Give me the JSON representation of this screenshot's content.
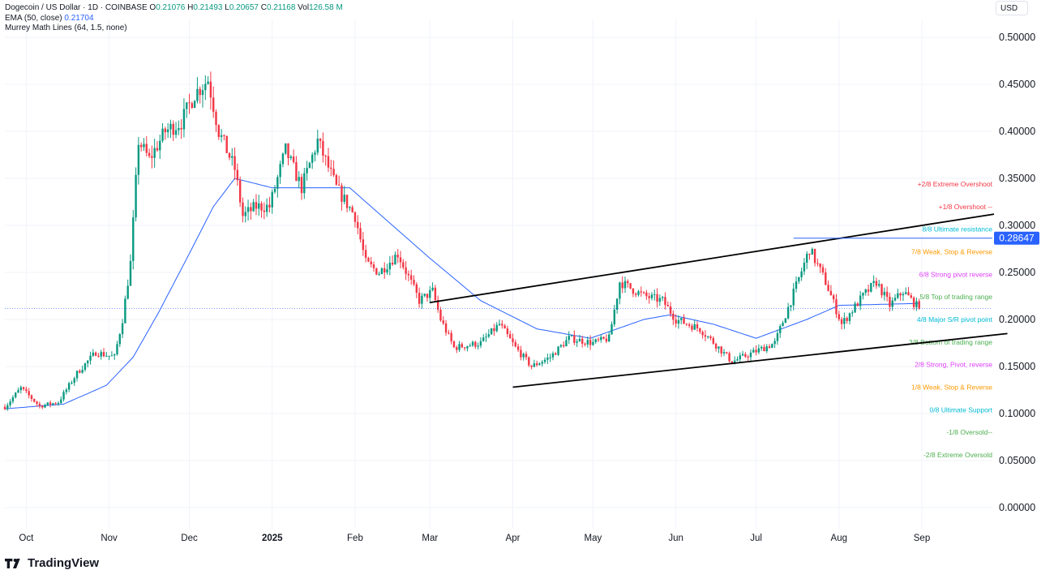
{
  "header": {
    "symbol": "Dogecoin / US Dollar · 1D · COINBASE",
    "ohlc": [
      {
        "k": "O",
        "v": "0.21076"
      },
      {
        "k": "H",
        "v": "0.21493"
      },
      {
        "k": "L",
        "v": "0.20657"
      },
      {
        "k": "C",
        "v": "0.21168"
      },
      {
        "k": "Vol",
        "v": "126.58 M"
      }
    ],
    "ema_label": "EMA (50, close)",
    "ema_value": "0.21704",
    "murrey_label": "Murrey Math Lines (64, 1.5, none)",
    "currency": "USD"
  },
  "brand": "TradingView",
  "colors": {
    "up": "#089981",
    "down": "#f23645",
    "ema": "#2962ff",
    "price_tag": "#2962ff",
    "channel": "#000000"
  },
  "chart_data": {
    "type": "candlestick",
    "symbol": "DOGE/USD",
    "ylim": [
      0,
      0.52
    ],
    "y_ticks": [
      "0.50000",
      "0.45000",
      "0.40000",
      "0.35000",
      "0.30000",
      "0.25000",
      "0.20000",
      "0.15000",
      "0.10000",
      "0.05000",
      "0.00000"
    ],
    "x_ticks": [
      {
        "label": "Oct",
        "date": "2024-10-01",
        "bold": false
      },
      {
        "label": "Nov",
        "date": "2024-11-01",
        "bold": false
      },
      {
        "label": "Dec",
        "date": "2024-12-01",
        "bold": false
      },
      {
        "label": "2025",
        "date": "2025-01-01",
        "bold": true
      },
      {
        "label": "Feb",
        "date": "2025-02-01",
        "bold": false
      },
      {
        "label": "Mar",
        "date": "2025-03-01",
        "bold": false
      },
      {
        "label": "Apr",
        "date": "2025-04-01",
        "bold": false
      },
      {
        "label": "May",
        "date": "2025-05-01",
        "bold": false
      },
      {
        "label": "Jun",
        "date": "2025-06-01",
        "bold": false
      },
      {
        "label": "Jul",
        "date": "2025-07-01",
        "bold": false
      },
      {
        "label": "Aug",
        "date": "2025-08-01",
        "bold": false
      },
      {
        "label": "Sep",
        "date": "2025-09-01",
        "bold": false
      }
    ],
    "price_path": [
      [
        "2024-09-23",
        0.107
      ],
      [
        "2024-09-29",
        0.127
      ],
      [
        "2024-10-06",
        0.108
      ],
      [
        "2024-10-13",
        0.112
      ],
      [
        "2024-10-20",
        0.143
      ],
      [
        "2024-10-27",
        0.165
      ],
      [
        "2024-11-03",
        0.16
      ],
      [
        "2024-11-06",
        0.2
      ],
      [
        "2024-11-09",
        0.26
      ],
      [
        "2024-11-12",
        0.39
      ],
      [
        "2024-11-16",
        0.37
      ],
      [
        "2024-11-22",
        0.4
      ],
      [
        "2024-11-28",
        0.41
      ],
      [
        "2024-12-03",
        0.44
      ],
      [
        "2024-12-08",
        0.455
      ],
      [
        "2024-12-12",
        0.4
      ],
      [
        "2024-12-18",
        0.36
      ],
      [
        "2024-12-21",
        0.31
      ],
      [
        "2024-12-26",
        0.32
      ],
      [
        "2024-12-31",
        0.32
      ],
      [
        "2025-01-06",
        0.38
      ],
      [
        "2025-01-12",
        0.34
      ],
      [
        "2025-01-18",
        0.39
      ],
      [
        "2025-01-25",
        0.34
      ],
      [
        "2025-02-01",
        0.31
      ],
      [
        "2025-02-05",
        0.26
      ],
      [
        "2025-02-10",
        0.25
      ],
      [
        "2025-02-17",
        0.27
      ],
      [
        "2025-02-25",
        0.22
      ],
      [
        "2025-03-02",
        0.23
      ],
      [
        "2025-03-05",
        0.2
      ],
      [
        "2025-03-10",
        0.17
      ],
      [
        "2025-03-20",
        0.175
      ],
      [
        "2025-03-27",
        0.195
      ],
      [
        "2025-04-02",
        0.17
      ],
      [
        "2025-04-08",
        0.15
      ],
      [
        "2025-04-15",
        0.16
      ],
      [
        "2025-04-22",
        0.18
      ],
      [
        "2025-05-01",
        0.175
      ],
      [
        "2025-05-07",
        0.18
      ],
      [
        "2025-05-11",
        0.24
      ],
      [
        "2025-05-20",
        0.225
      ],
      [
        "2025-05-27",
        0.22
      ],
      [
        "2025-06-01",
        0.2
      ],
      [
        "2025-06-10",
        0.19
      ],
      [
        "2025-06-17",
        0.17
      ],
      [
        "2025-06-22",
        0.155
      ],
      [
        "2025-06-30",
        0.165
      ],
      [
        "2025-07-08",
        0.175
      ],
      [
        "2025-07-14",
        0.22
      ],
      [
        "2025-07-21",
        0.275
      ],
      [
        "2025-07-27",
        0.24
      ],
      [
        "2025-08-02",
        0.195
      ],
      [
        "2025-08-10",
        0.225
      ],
      [
        "2025-08-15",
        0.24
      ],
      [
        "2025-08-20",
        0.215
      ],
      [
        "2025-08-25",
        0.23
      ],
      [
        "2025-08-31",
        0.2117
      ]
    ],
    "ema_path": [
      [
        "2024-09-23",
        0.105
      ],
      [
        "2024-10-15",
        0.11
      ],
      [
        "2024-10-31",
        0.13
      ],
      [
        "2024-11-10",
        0.16
      ],
      [
        "2024-11-20",
        0.21
      ],
      [
        "2024-12-01",
        0.27
      ],
      [
        "2024-12-10",
        0.32
      ],
      [
        "2024-12-18",
        0.35
      ],
      [
        "2025-01-01",
        0.34
      ],
      [
        "2025-01-15",
        0.34
      ],
      [
        "2025-01-30",
        0.34
      ],
      [
        "2025-02-15",
        0.3
      ],
      [
        "2025-03-01",
        0.265
      ],
      [
        "2025-03-20",
        0.22
      ],
      [
        "2025-04-10",
        0.19
      ],
      [
        "2025-04-30",
        0.18
      ],
      [
        "2025-05-20",
        0.2
      ],
      [
        "2025-05-30",
        0.205
      ],
      [
        "2025-06-15",
        0.195
      ],
      [
        "2025-07-01",
        0.18
      ],
      [
        "2025-07-20",
        0.2
      ],
      [
        "2025-08-01",
        0.215
      ],
      [
        "2025-08-31",
        0.21704
      ]
    ],
    "trendlines": [
      {
        "name": "upper-channel",
        "from": [
          "2025-03-01",
          0.218
        ],
        "to": [
          "2025-09-28",
          0.312
        ]
      },
      {
        "name": "lower-channel",
        "from": [
          "2025-04-01",
          0.128
        ],
        "to": [
          "2025-10-03",
          0.185
        ]
      }
    ],
    "horizontal_ray": {
      "start_date": "2025-07-15",
      "value": 0.28647,
      "label": "0.28647"
    },
    "last_price": 0.2117,
    "murrey_levels": [
      {
        "label": "+2/8 Extreme Overshoot",
        "value": 0.344,
        "color": "#f23645"
      },
      {
        "label": "+1/8 Overshoot --",
        "value": 0.32,
        "color": "#f23645"
      },
      {
        "label": "8/8 Ultimate resistance",
        "value": 0.296,
        "color": "#00bcd4"
      },
      {
        "label": "7/8 Weak, Stop & Reverse",
        "value": 0.272,
        "color": "#ff9800"
      },
      {
        "label": "6/8 Strong pivot reverse",
        "value": 0.248,
        "color": "#e040fb"
      },
      {
        "label": "5/8 Top of trading range",
        "value": 0.224,
        "color": "#4caf50"
      },
      {
        "label": "4/8 Major S/R pivot point",
        "value": 0.2,
        "color": "#00bcd4"
      },
      {
        "label": "3/8 Bottom of trading range",
        "value": 0.176,
        "color": "#4caf50"
      },
      {
        "label": "2/8 Strong, Pivot, reverse",
        "value": 0.152,
        "color": "#e040fb"
      },
      {
        "label": "1/8 Weak, Stop & Reverse",
        "value": 0.128,
        "color": "#ff9800"
      },
      {
        "label": "0/8 Ultimate Support",
        "value": 0.104,
        "color": "#00bcd4"
      },
      {
        "label": "-1/8 Oversold--",
        "value": 0.08,
        "color": "#4caf50"
      },
      {
        "label": "-2/8 Extreme Oversold",
        "value": 0.056,
        "color": "#4caf50"
      }
    ]
  }
}
